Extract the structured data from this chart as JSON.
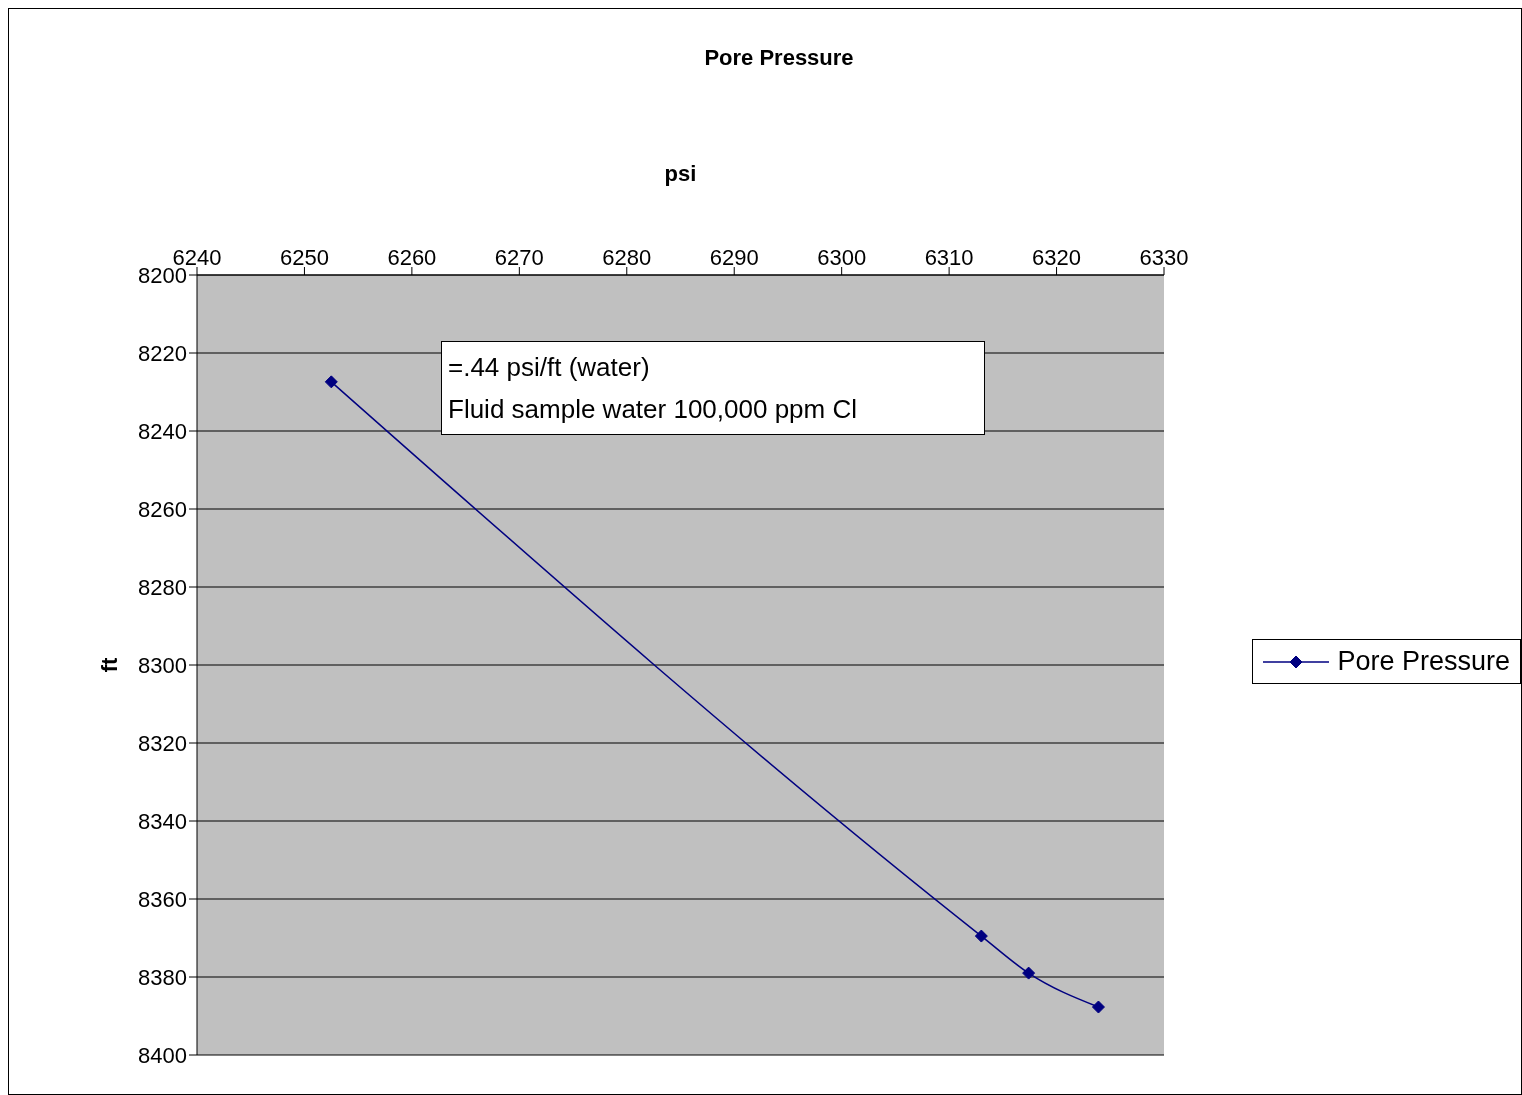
{
  "chart_data": {
    "type": "line",
    "title": "Pore Pressure",
    "xlabel": "psi",
    "ylabel": "ft",
    "x": [
      6252.5,
      6313,
      6317.4,
      6323.9
    ],
    "series": [
      {
        "name": "Pore Pressure",
        "color": "#000080",
        "values": [
          8227.4,
          8369.5,
          8379,
          8387.7
        ]
      }
    ],
    "xlim": [
      6240,
      6330
    ],
    "xticks": [
      6240,
      6250,
      6260,
      6270,
      6280,
      6290,
      6300,
      6310,
      6320,
      6330
    ],
    "ylim": [
      8400,
      8200
    ],
    "yticks": [
      8200,
      8220,
      8240,
      8260,
      8280,
      8300,
      8320,
      8340,
      8360,
      8380,
      8400
    ],
    "grid": "y",
    "legend": "right",
    "marker": "diamond",
    "line_style": "solid",
    "annotations": [
      "=.44 psi/ft (water)",
      "Fluid sample water 100,000 ppm Cl"
    ]
  }
}
